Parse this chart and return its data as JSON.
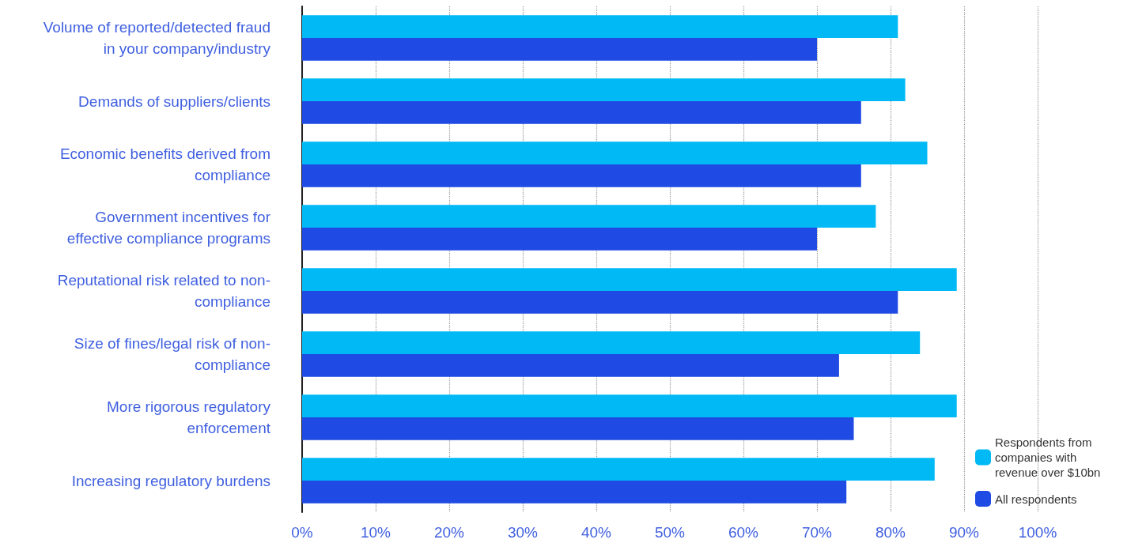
{
  "chart_data": {
    "type": "bar",
    "orientation": "horizontal",
    "categories": [
      "Volume of reported/detected fraud\nin your company/industry",
      "Demands of suppliers/clients",
      "Economic benefits derived from\ncompliance",
      "Government incentives for\neffective compliance programs",
      "Reputational risk related to non-\ncompliance",
      "Size of fines/legal risk of non-\ncompliance",
      "More rigorous regulatory\nenforcement",
      "Increasing regulatory burdens"
    ],
    "series": [
      {
        "name": "Respondents from companies with revenue over $10bn",
        "color": "#00b9f5",
        "values": [
          81,
          82,
          85,
          78,
          89,
          84,
          89,
          86
        ]
      },
      {
        "name": "All respondents",
        "color": "#1f4ae3",
        "values": [
          70,
          76,
          76,
          70,
          81,
          73,
          75,
          74
        ]
      }
    ],
    "xlim": [
      0,
      100
    ],
    "xticks": [
      {
        "value": 0,
        "label": "0%"
      },
      {
        "value": 10,
        "label": "10%"
      },
      {
        "value": 20,
        "label": "20%"
      },
      {
        "value": 30,
        "label": "30%"
      },
      {
        "value": 40,
        "label": "40%"
      },
      {
        "value": 50,
        "label": "50%"
      },
      {
        "value": 60,
        "label": "60%"
      },
      {
        "value": 70,
        "label": "70%"
      },
      {
        "value": 80,
        "label": "80%"
      },
      {
        "value": 90,
        "label": "90%"
      },
      {
        "value": 100,
        "label": "100%"
      }
    ],
    "grid": "x",
    "legend": "bottom right"
  }
}
